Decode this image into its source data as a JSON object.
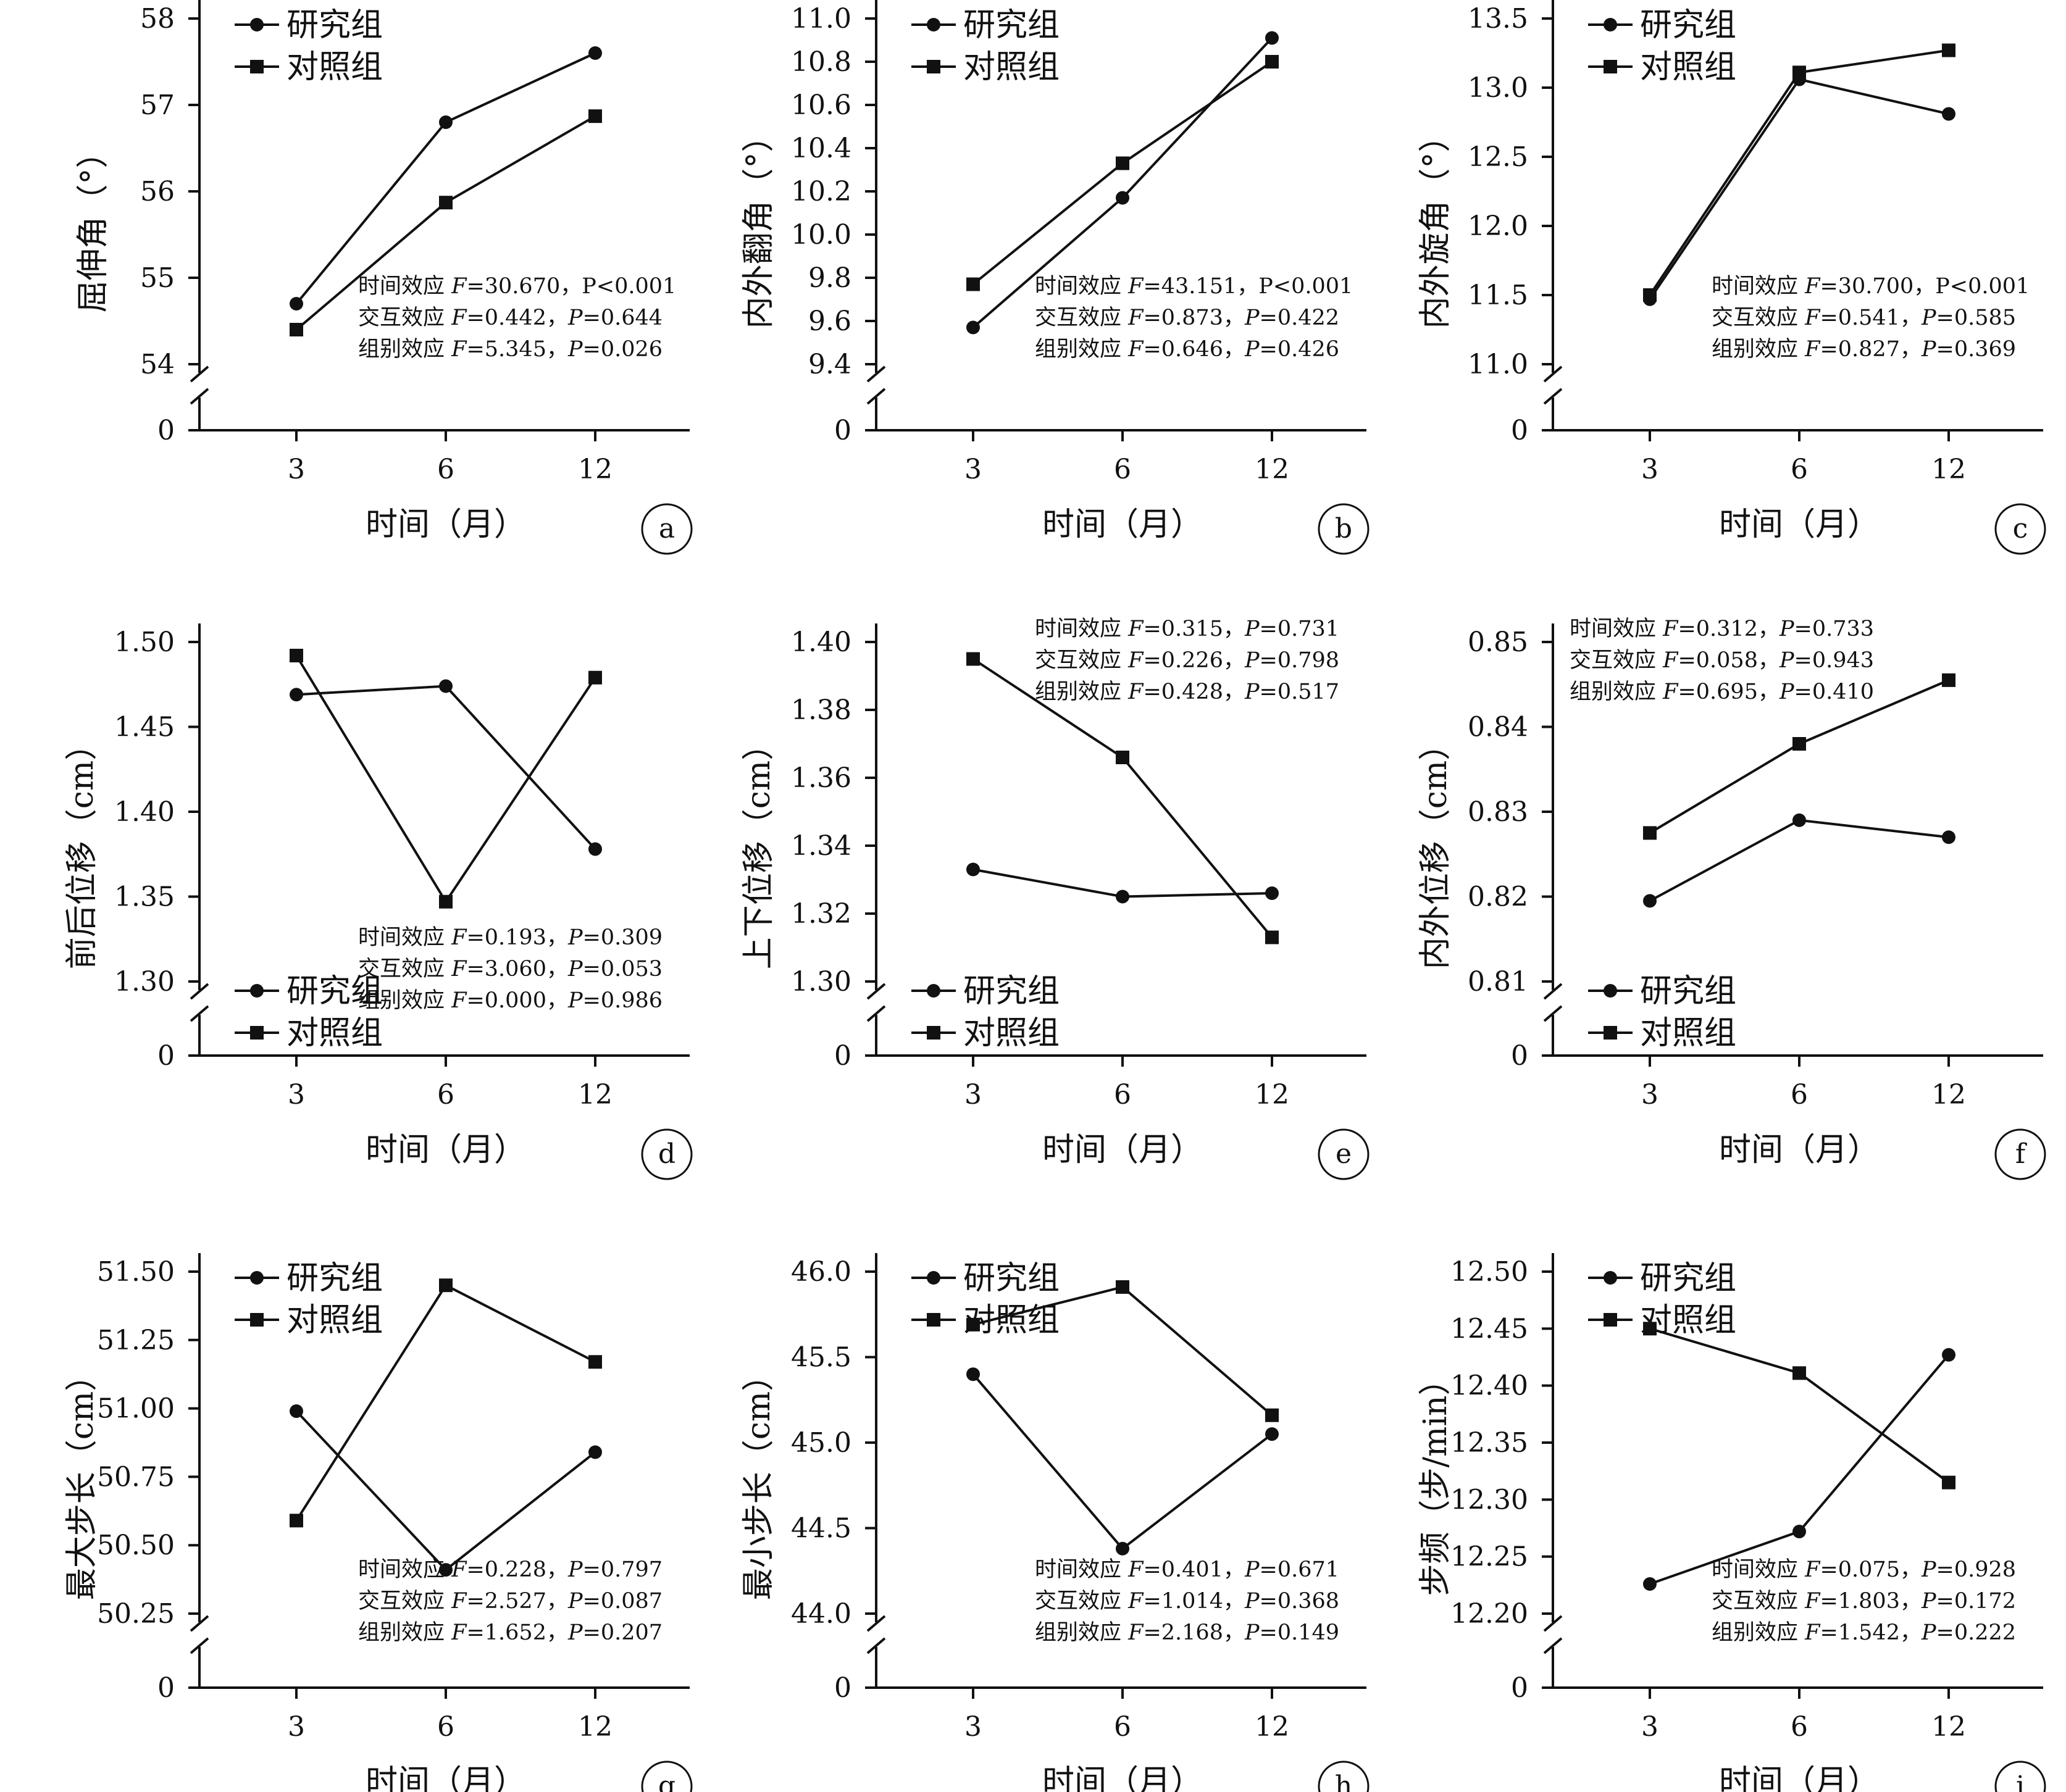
{
  "legend": {
    "study": "研究组",
    "control": "对照组"
  },
  "colors": {
    "line": "#111111"
  },
  "chart_data": [
    {
      "id": "a",
      "type": "line",
      "letter": "a",
      "xlabel": "时间（月）",
      "ylabel": "屈伸角（°）",
      "categories": [
        "3",
        "6",
        "12"
      ],
      "yticks": [
        "54",
        "55",
        "56",
        "57",
        "58"
      ],
      "ylim": [
        54,
        58
      ],
      "zero_tick": "0",
      "series": [
        {
          "name": "研究组",
          "marker": "circle",
          "values": [
            54.7,
            56.8,
            57.6
          ]
        },
        {
          "name": "对照组",
          "marker": "square",
          "values": [
            54.4,
            55.87,
            56.87
          ]
        }
      ],
      "stats": [
        "时间效应 F=30.670，P<0.001",
        "交互效应 F=0.442，P=0.644",
        "组别效应 F=5.345，P=0.026"
      ],
      "legend_position": "top-left",
      "stats_position": "bottom-right"
    },
    {
      "id": "b",
      "type": "line",
      "letter": "b",
      "xlabel": "时间（月）",
      "ylabel": "内外翻角（°）",
      "categories": [
        "3",
        "6",
        "12"
      ],
      "yticks": [
        "9.4",
        "9.6",
        "9.8",
        "10.0",
        "10.2",
        "10.4",
        "10.6",
        "10.8",
        "11.0"
      ],
      "ylim": [
        9.4,
        11.0
      ],
      "zero_tick": "0",
      "series": [
        {
          "name": "研究组",
          "marker": "circle",
          "values": [
            9.57,
            10.17,
            10.91
          ]
        },
        {
          "name": "对照组",
          "marker": "square",
          "values": [
            9.77,
            10.33,
            10.8
          ]
        }
      ],
      "stats": [
        "时间效应 F=43.151，P<0.001",
        "交互效应 F=0.873，P=0.422",
        "组别效应 F=0.646，P=0.426"
      ],
      "legend_position": "top-left",
      "stats_position": "bottom-right"
    },
    {
      "id": "c",
      "type": "line",
      "letter": "c",
      "xlabel": "时间（月）",
      "ylabel": "内外旋角（°）",
      "categories": [
        "3",
        "6",
        "12"
      ],
      "yticks": [
        "11.0",
        "11.5",
        "12.0",
        "12.5",
        "13.0",
        "13.5"
      ],
      "ylim": [
        11.0,
        13.5
      ],
      "zero_tick": "0",
      "series": [
        {
          "name": "研究组",
          "marker": "circle",
          "values": [
            11.47,
            13.06,
            12.81
          ]
        },
        {
          "name": "对照组",
          "marker": "square",
          "values": [
            11.5,
            13.11,
            13.27
          ]
        }
      ],
      "stats": [
        "时间效应 F=30.700，P<0.001",
        "交互效应 F=0.541，P=0.585",
        "组别效应 F=0.827，P=0.369"
      ],
      "legend_position": "top-left",
      "stats_position": "bottom-right"
    },
    {
      "id": "d",
      "type": "line",
      "letter": "d",
      "xlabel": "时间（月）",
      "ylabel": "前后位移（cm）",
      "categories": [
        "3",
        "6",
        "12"
      ],
      "yticks": [
        "1.30",
        "1.35",
        "1.40",
        "1.45",
        "1.50"
      ],
      "ylim": [
        1.3,
        1.5
      ],
      "zero_tick": "0",
      "series": [
        {
          "name": "研究组",
          "marker": "circle",
          "values": [
            1.469,
            1.474,
            1.378
          ]
        },
        {
          "name": "对照组",
          "marker": "square",
          "values": [
            1.492,
            1.347,
            1.479
          ]
        }
      ],
      "stats": [
        "时间效应 F=0.193，P=0.309",
        "交互效应 F=3.060，P=0.053",
        "组别效应 F=0.000，P=0.986"
      ],
      "legend_position": "bottom-left",
      "stats_position": "bottom-right"
    },
    {
      "id": "e",
      "type": "line",
      "letter": "e",
      "xlabel": "时间（月）",
      "ylabel": "上下位移（cm）",
      "categories": [
        "3",
        "6",
        "12"
      ],
      "yticks": [
        "1.30",
        "1.32",
        "1.34",
        "1.36",
        "1.38",
        "1.40"
      ],
      "ylim": [
        1.3,
        1.4
      ],
      "zero_tick": "0",
      "series": [
        {
          "name": "研究组",
          "marker": "circle",
          "values": [
            1.333,
            1.325,
            1.326
          ]
        },
        {
          "name": "对照组",
          "marker": "square",
          "values": [
            1.395,
            1.366,
            1.313
          ]
        }
      ],
      "stats": [
        "时间效应 F=0.315，P=0.731",
        "交互效应 F=0.226，P=0.798",
        "组别效应 F=0.428，P=0.517"
      ],
      "legend_position": "bottom-left",
      "stats_position": "top-right"
    },
    {
      "id": "f",
      "type": "line",
      "letter": "f",
      "xlabel": "时间（月）",
      "ylabel": "内外位移（cm）",
      "categories": [
        "3",
        "6",
        "12"
      ],
      "yticks": [
        "0.81",
        "0.82",
        "0.83",
        "0.84",
        "0.85"
      ],
      "ylim": [
        0.81,
        0.85
      ],
      "zero_tick": "0",
      "series": [
        {
          "name": "研究组",
          "marker": "circle",
          "values": [
            0.8195,
            0.829,
            0.827
          ]
        },
        {
          "name": "对照组",
          "marker": "square",
          "values": [
            0.8275,
            0.838,
            0.8455
          ]
        }
      ],
      "stats": [
        "时间效应 F=0.312，P=0.733",
        "交互效应 F=0.058，P=0.943",
        "组别效应 F=0.695，P=0.410"
      ],
      "legend_position": "bottom-left",
      "stats_position": "top-left"
    },
    {
      "id": "g",
      "type": "line",
      "letter": "g",
      "xlabel": "时间（月）",
      "ylabel": "最大步长（cm）",
      "categories": [
        "3",
        "6",
        "12"
      ],
      "yticks": [
        "50.25",
        "50.50",
        "50.75",
        "51.00",
        "51.25",
        "51.50"
      ],
      "ylim": [
        50.25,
        51.5
      ],
      "zero_tick": "0",
      "series": [
        {
          "name": "研究组",
          "marker": "circle",
          "values": [
            50.99,
            50.41,
            50.84
          ]
        },
        {
          "name": "对照组",
          "marker": "square",
          "values": [
            50.59,
            51.45,
            51.17
          ]
        }
      ],
      "stats": [
        "时间效应 F=0.228，P=0.797",
        "交互效应 F=2.527，P=0.087",
        "组别效应 F=1.652，P=0.207"
      ],
      "legend_position": "top-left",
      "stats_position": "bottom-right"
    },
    {
      "id": "h",
      "type": "line",
      "letter": "h",
      "xlabel": "时间（月）",
      "ylabel": "最小步长（cm）",
      "categories": [
        "3",
        "6",
        "12"
      ],
      "yticks": [
        "44.0",
        "44.5",
        "45.0",
        "45.5",
        "46.0"
      ],
      "ylim": [
        44.0,
        46.0
      ],
      "zero_tick": "0",
      "series": [
        {
          "name": "研究组",
          "marker": "circle",
          "values": [
            45.4,
            44.38,
            45.05
          ]
        },
        {
          "name": "对照组",
          "marker": "square",
          "values": [
            45.69,
            45.91,
            45.16
          ]
        }
      ],
      "stats": [
        "时间效应 F=0.401，P=0.671",
        "交互效应 F=1.014，P=0.368",
        "组别效应 F=2.168，P=0.149"
      ],
      "legend_position": "top-left",
      "stats_position": "bottom-right"
    },
    {
      "id": "i",
      "type": "line",
      "letter": "i",
      "xlabel": "时间（月）",
      "ylabel": "步频（步/min）",
      "categories": [
        "3",
        "6",
        "12"
      ],
      "yticks": [
        "12.20",
        "12.25",
        "12.30",
        "12.35",
        "12.40",
        "12.45",
        "12.50"
      ],
      "ylim": [
        12.2,
        12.5
      ],
      "zero_tick": "0",
      "series": [
        {
          "name": "研究组",
          "marker": "circle",
          "values": [
            12.226,
            12.272,
            12.427
          ]
        },
        {
          "name": "对照组",
          "marker": "square",
          "values": [
            12.45,
            12.411,
            12.315
          ]
        }
      ],
      "stats": [
        "时间效应 F=0.075，P=0.928",
        "交互效应 F=1.803，P=0.172",
        "组别效应 F=1.542，P=0.222"
      ],
      "legend_position": "top-left",
      "stats_position": "bottom-right"
    }
  ]
}
